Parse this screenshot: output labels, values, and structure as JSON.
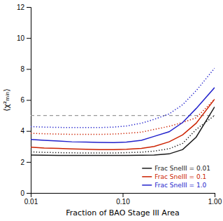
{
  "chart_data": {
    "type": "line",
    "x": [
      0.01,
      0.014,
      0.02,
      0.028,
      0.04,
      0.056,
      0.08,
      0.11,
      0.16,
      0.22,
      0.32,
      0.45,
      0.63,
      1.0
    ],
    "series": [
      {
        "name": "Frac SneIII = 0.01",
        "color": "#1a1a1a",
        "line_style": "solid",
        "values": [
          2.45,
          2.43,
          2.42,
          2.42,
          2.42,
          2.42,
          2.42,
          2.42,
          2.43,
          2.45,
          2.52,
          2.8,
          3.6,
          5.55
        ]
      },
      {
        "color": "#1a1a1a",
        "line_style": "dotted",
        "values": [
          2.65,
          2.62,
          2.6,
          2.59,
          2.58,
          2.58,
          2.58,
          2.6,
          2.63,
          2.7,
          2.85,
          3.2,
          4.1,
          5.0
        ]
      },
      {
        "name": "Frac SneIII = 0.1",
        "color": "#cc2200",
        "line_style": "solid",
        "values": [
          2.95,
          2.9,
          2.87,
          2.84,
          2.82,
          2.8,
          2.8,
          2.82,
          2.88,
          3.0,
          3.3,
          3.75,
          4.5,
          6.05
        ]
      },
      {
        "color": "#cc2200",
        "line_style": "dotted",
        "values": [
          3.85,
          3.82,
          3.8,
          3.78,
          3.78,
          3.78,
          3.8,
          3.85,
          3.92,
          4.1,
          4.3,
          4.55,
          4.85,
          6.05
        ]
      },
      {
        "name": "Frac SneIII = 1.0",
        "color": "#2222cc",
        "line_style": "solid",
        "values": [
          3.45,
          3.4,
          3.35,
          3.3,
          3.28,
          3.26,
          3.25,
          3.28,
          3.4,
          3.65,
          3.95,
          4.55,
          5.45,
          6.8
        ]
      },
      {
        "color": "#2222cc",
        "line_style": "dotted",
        "values": [
          4.28,
          4.25,
          4.23,
          4.22,
          4.22,
          4.22,
          4.25,
          4.32,
          4.5,
          4.75,
          5.1,
          5.7,
          6.6,
          8.05
        ]
      }
    ],
    "reference_line": {
      "value": 5.0,
      "color": "#999999",
      "line_style": "dashed"
    },
    "xlabel": "Fraction of BAO Stage III Area",
    "ylabel": "⟨χ²ₘᵢₙ⟩",
    "log": "x",
    "xlim": [
      0.01,
      1.0
    ],
    "xticks": [
      {
        "value": 0.01,
        "label": "0.01"
      },
      {
        "value": 0.1,
        "label": "0.10"
      },
      {
        "value": 1.0,
        "label": "1.00"
      }
    ],
    "ylim": [
      0,
      12
    ],
    "yticks": [
      0,
      2,
      4,
      6,
      8,
      10,
      12
    ],
    "legend": "lower right",
    "grid": false
  }
}
